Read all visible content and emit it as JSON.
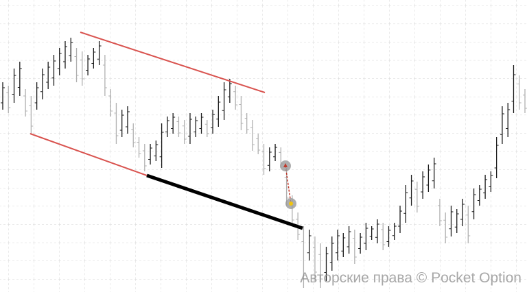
{
  "chart_data": {
    "type": "ohlc",
    "watermark": "Авторские права © Pocket Option",
    "ylim": [
      0,
      426
    ],
    "up_color": "#1a1a1a",
    "down_color": "#b0b0b0",
    "highs": [
      306,
      301,
      326,
      336,
      296,
      286,
      306,
      326,
      336,
      346,
      356,
      366,
      371,
      356,
      351,
      346,
      356,
      366,
      346,
      296,
      276,
      266,
      271,
      246,
      226,
      216,
      216,
      221,
      246,
      256,
      261,
      256,
      251,
      261,
      256,
      261,
      251,
      266,
      286,
      306,
      311,
      301,
      286,
      261,
      251,
      231,
      216,
      211,
      216,
      211,
      181,
      141,
      116,
      96,
      91,
      81,
      71,
      66,
      81,
      91,
      86,
      96,
      91,
      86,
      101,
      96,
      106,
      101,
      96,
      101,
      126,
      156,
      171,
      161,
      176,
      186,
      196,
      136,
      116,
      126,
      121,
      136,
      126,
      151,
      156,
      171,
      176,
      226,
      271,
      276,
      331,
      316,
      296
    ],
    "lows": [
      266,
      261,
      276,
      286,
      256,
      231,
      266,
      281,
      296,
      301,
      316,
      326,
      336,
      306,
      301,
      316,
      326,
      331,
      286,
      256,
      216,
      226,
      231,
      211,
      196,
      176,
      186,
      191,
      181,
      226,
      231,
      226,
      216,
      216,
      226,
      231,
      226,
      231,
      241,
      251,
      276,
      266,
      236,
      231,
      206,
      201,
      171,
      176,
      191,
      181,
      126,
      96,
      76,
      6,
      46,
      16,
      6,
      16,
      31,
      46,
      51,
      56,
      41,
      56,
      61,
      76,
      71,
      61,
      66,
      76,
      86,
      101,
      126,
      116,
      136,
      146,
      151,
      96,
      71,
      81,
      86,
      96,
      71,
      106,
      126,
      136,
      146,
      166,
      216,
      226,
      261,
      266,
      261
    ]
  }
}
